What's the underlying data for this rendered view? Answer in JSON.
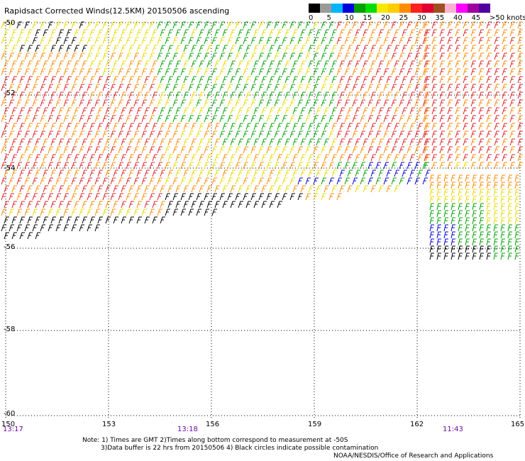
{
  "title": "Rapidsact Corrected Winds(12.5KM) 20150506 ascending",
  "legend": {
    "swatches": [
      "#000000",
      "#9a9a9a",
      "#00b4ff",
      "#0000dd",
      "#00a000",
      "#00e000",
      "#f8e800",
      "#ffcc00",
      "#ff8c00",
      "#ff2020",
      "#e00030",
      "#a05020",
      "#ffb0d0",
      "#ff00ff",
      "#a000a0",
      "#5000a0"
    ],
    "labels": [
      "0",
      "5",
      "10",
      "15",
      "20",
      "25",
      "30",
      "35",
      "40",
      "45",
      ">50 knots"
    ]
  },
  "axes": {
    "lat_labels": [
      "-50",
      "-52",
      "-54",
      "-56",
      "-58",
      "-60"
    ],
    "lon_labels": [
      "150",
      "153",
      "156",
      "159",
      "162",
      "165"
    ],
    "time_labels": [
      "13:17",
      "13:18",
      "11:43"
    ]
  },
  "notes": {
    "line1": "Note: 1) Times are GMT 2)Times along bottom correspond to measurement at -50S",
    "line2": "3)Data buffer is 22 hrs from 20150506 4) Black circles indicate possible contamination",
    "credit": "NOAA/NESDIS/Office of Research and Applications"
  },
  "colors": {
    "black": "#000000",
    "blue": "#0000cc",
    "green": "#00a000",
    "yellow": "#e8d800",
    "orange": "#ff8800",
    "red": "#dd2020",
    "timestamp": "#6a0aa0"
  }
}
